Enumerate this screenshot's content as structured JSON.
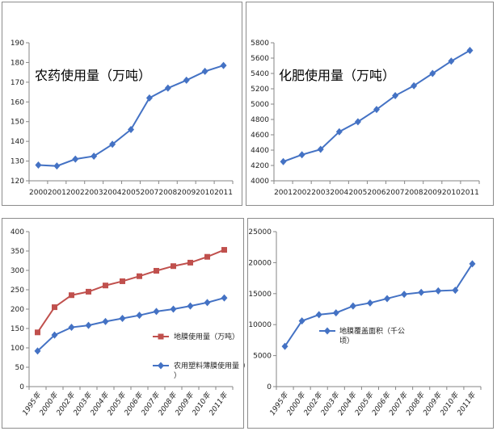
{
  "chart_data": [
    {
      "type": "line",
      "title": "农药使用量（万吨）",
      "categories": [
        "2000",
        "2001",
        "2002",
        "2003",
        "2004",
        "2005",
        "2007",
        "2008",
        "2009",
        "2010",
        "2011"
      ],
      "series": [
        {
          "name": "",
          "values": [
            128,
            127.5,
            131,
            132.5,
            138.5,
            146,
            162,
            167,
            171,
            175.5,
            178.5
          ],
          "color": "#4472c4",
          "marker": "diamond"
        }
      ],
      "ylim": [
        120,
        190
      ],
      "yticks": [
        120,
        130,
        140,
        150,
        160,
        170,
        180,
        190
      ],
      "grid": false,
      "legend": "none"
    },
    {
      "type": "line",
      "title": "化肥使用量（万吨）",
      "categories": [
        "2001",
        "2002",
        "2003",
        "2004",
        "2005",
        "2006",
        "2007",
        "2008",
        "2009",
        "2010",
        "2011"
      ],
      "series": [
        {
          "name": "",
          "values": [
            4250,
            4340,
            4410,
            4640,
            4770,
            4930,
            5110,
            5240,
            5400,
            5560,
            5700
          ],
          "color": "#4472c4",
          "marker": "diamond"
        }
      ],
      "ylim": [
        4000,
        5800
      ],
      "yticks": [
        4000,
        4200,
        4400,
        4600,
        4800,
        5000,
        5200,
        5400,
        5600,
        5800
      ],
      "grid": false,
      "legend": "none"
    },
    {
      "type": "line",
      "title": "",
      "categories": [
        "1995年",
        "2000年",
        "2002年",
        "2003年",
        "2004年",
        "2005年",
        "2006年",
        "2007年",
        "2008年",
        "2009年",
        "2010年",
        "2011年"
      ],
      "series": [
        {
          "name": "地膜使用量（万吨）",
          "values": [
            140,
            205,
            236,
            245,
            261,
            272,
            285,
            299,
            311,
            320,
            335,
            353
          ],
          "color": "#c0504d",
          "marker": "square"
        },
        {
          "name": "农用塑料薄膜使用量（万吨）",
          "values": [
            92,
            133,
            153,
            158,
            168,
            176,
            184,
            194,
            200,
            208,
            217,
            229
          ],
          "color": "#4472c4",
          "marker": "diamond"
        }
      ],
      "ylim": [
        0,
        400
      ],
      "yticks": [
        0,
        50,
        100,
        150,
        200,
        250,
        300,
        350,
        400
      ],
      "grid": false,
      "legend": "right"
    },
    {
      "type": "line",
      "title": "",
      "categories": [
        "1995年",
        "2000年",
        "2002年",
        "2003年",
        "2004年",
        "2005年",
        "2006年",
        "2007年",
        "2008年",
        "2009年",
        "2010年",
        "2011年"
      ],
      "series": [
        {
          "name": "地膜覆盖面积（千公顷）",
          "values": [
            6500,
            10600,
            11600,
            11900,
            13000,
            13500,
            14200,
            14900,
            15200,
            15450,
            15550,
            19800
          ],
          "color": "#4472c4",
          "marker": "diamond"
        }
      ],
      "ylim": [
        0,
        25000
      ],
      "yticks": [
        0,
        5000,
        10000,
        15000,
        20000,
        25000
      ],
      "grid": false,
      "legend": "right"
    }
  ]
}
